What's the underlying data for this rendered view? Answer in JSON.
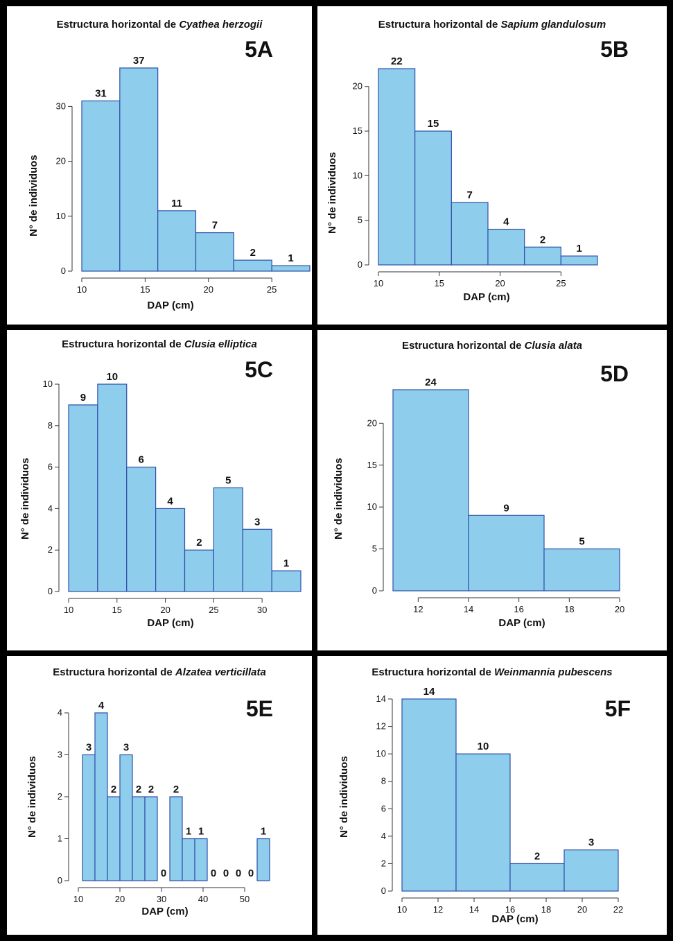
{
  "chart_data": [
    {
      "type": "bar",
      "label": "5A",
      "title_prefix": "Estructura horizontal de",
      "species": "Cyathea herzogii",
      "xlabel": "DAP (cm)",
      "ylabel": "N° de individuos",
      "bins": [
        [
          10,
          13
        ],
        [
          13,
          16
        ],
        [
          16,
          19
        ],
        [
          19,
          22
        ],
        [
          22,
          25
        ],
        [
          25,
          28
        ]
      ],
      "values": [
        31,
        37,
        11,
        7,
        2,
        1
      ],
      "data_labels": [
        "31",
        "37",
        "11",
        "7",
        "2",
        "1"
      ],
      "xticks": [
        10,
        15,
        20,
        25
      ],
      "yticks": [
        0,
        10,
        20,
        30
      ],
      "xlim": [
        10,
        28
      ],
      "ylim": [
        0,
        37
      ],
      "bar_color": "#8ecdec"
    },
    {
      "type": "bar",
      "label": "5B",
      "title_prefix": "Estructura horizontal de",
      "species": "Sapium glandulosum",
      "xlabel": "DAP (cm)",
      "ylabel": "N° de individuos",
      "bins": [
        [
          10,
          13
        ],
        [
          13,
          16
        ],
        [
          16,
          19
        ],
        [
          19,
          22
        ],
        [
          22,
          25
        ],
        [
          25,
          28
        ]
      ],
      "values": [
        22,
        15,
        7,
        4,
        2,
        1
      ],
      "data_labels": [
        "22",
        "15",
        "7",
        "4",
        "2",
        "1"
      ],
      "xticks": [
        10,
        15,
        20,
        25
      ],
      "yticks": [
        0,
        5,
        10,
        15,
        20
      ],
      "xlim": [
        10,
        28
      ],
      "ylim": [
        0,
        22
      ],
      "bar_color": "#8ecdec"
    },
    {
      "type": "bar",
      "label": "5C",
      "title_prefix": "Estructura horizontal de",
      "species": "Clusia elliptica",
      "xlabel": "DAP (cm)",
      "ylabel": "N° de individuos",
      "bins": [
        [
          10,
          13
        ],
        [
          13,
          16
        ],
        [
          16,
          19
        ],
        [
          19,
          22
        ],
        [
          22,
          25
        ],
        [
          25,
          28
        ],
        [
          28,
          31
        ],
        [
          31,
          34
        ]
      ],
      "values": [
        9,
        10,
        6,
        4,
        2,
        5,
        3,
        1
      ],
      "data_labels": [
        "9",
        "10",
        "6",
        "4",
        "2",
        "5",
        "3",
        "1"
      ],
      "xticks": [
        10,
        15,
        20,
        25,
        30
      ],
      "yticks": [
        0,
        2,
        4,
        6,
        8,
        10
      ],
      "xlim": [
        10,
        34
      ],
      "ylim": [
        0,
        10
      ],
      "bar_color": "#8ecdec"
    },
    {
      "type": "bar",
      "label": "5D",
      "title_prefix": "Estructura horizontal de",
      "species": "Clusia alata",
      "xlabel": "DAP (cm)",
      "ylabel": "N° de individuos",
      "bins": [
        [
          11,
          14
        ],
        [
          14,
          17
        ],
        [
          17,
          20
        ]
      ],
      "values": [
        24,
        9,
        5
      ],
      "data_labels": [
        "24",
        "9",
        "5"
      ],
      "xticks": [
        12,
        14,
        16,
        18,
        20
      ],
      "yticks": [
        0,
        5,
        10,
        15,
        20
      ],
      "xlim": [
        11,
        20
      ],
      "ylim": [
        0,
        24
      ],
      "bar_color": "#8ecdec"
    },
    {
      "type": "bar",
      "label": "5E",
      "title_prefix": "Estructura horizontal de",
      "species": "Alzatea verticillata",
      "xlabel": "DAP (cm)",
      "ylabel": "N° de individuos",
      "bins": [
        [
          11,
          14
        ],
        [
          14,
          17
        ],
        [
          17,
          20
        ],
        [
          20,
          23
        ],
        [
          23,
          26
        ],
        [
          26,
          29
        ],
        [
          29,
          32
        ],
        [
          32,
          35
        ],
        [
          35,
          38
        ],
        [
          38,
          41
        ],
        [
          41,
          44
        ],
        [
          44,
          47
        ],
        [
          47,
          50
        ],
        [
          50,
          53
        ],
        [
          53,
          56
        ]
      ],
      "values": [
        3,
        4,
        2,
        3,
        2,
        2,
        0,
        2,
        1,
        1,
        0,
        0,
        0,
        0,
        1
      ],
      "data_labels": [
        "3",
        "4",
        "2",
        "3",
        "2",
        "2",
        "0",
        "2",
        "1",
        "1",
        "0",
        "0",
        "0",
        "0",
        "1"
      ],
      "xticks": [
        10,
        20,
        30,
        40,
        50
      ],
      "yticks": [
        0,
        1,
        2,
        3,
        4
      ],
      "xlim": [
        10,
        56
      ],
      "ylim": [
        0,
        4
      ],
      "bar_color": "#8ecdec"
    },
    {
      "type": "bar",
      "label": "5F",
      "title_prefix": "Estructura horizontal de",
      "species": "Weinmannia pubescens",
      "xlabel": "DAP (cm)",
      "ylabel": "N° de individuos",
      "bins": [
        [
          10,
          13
        ],
        [
          13,
          16
        ],
        [
          16,
          19
        ],
        [
          19,
          22
        ]
      ],
      "values": [
        14,
        10,
        2,
        3
      ],
      "data_labels": [
        "14",
        "10",
        "2",
        "3"
      ],
      "xticks": [
        10,
        12,
        14,
        16,
        18,
        20,
        22
      ],
      "yticks": [
        0,
        2,
        4,
        6,
        8,
        10,
        12,
        14
      ],
      "xlim": [
        10,
        22
      ],
      "ylim": [
        0,
        14
      ],
      "bar_color": "#8ecdec"
    }
  ]
}
